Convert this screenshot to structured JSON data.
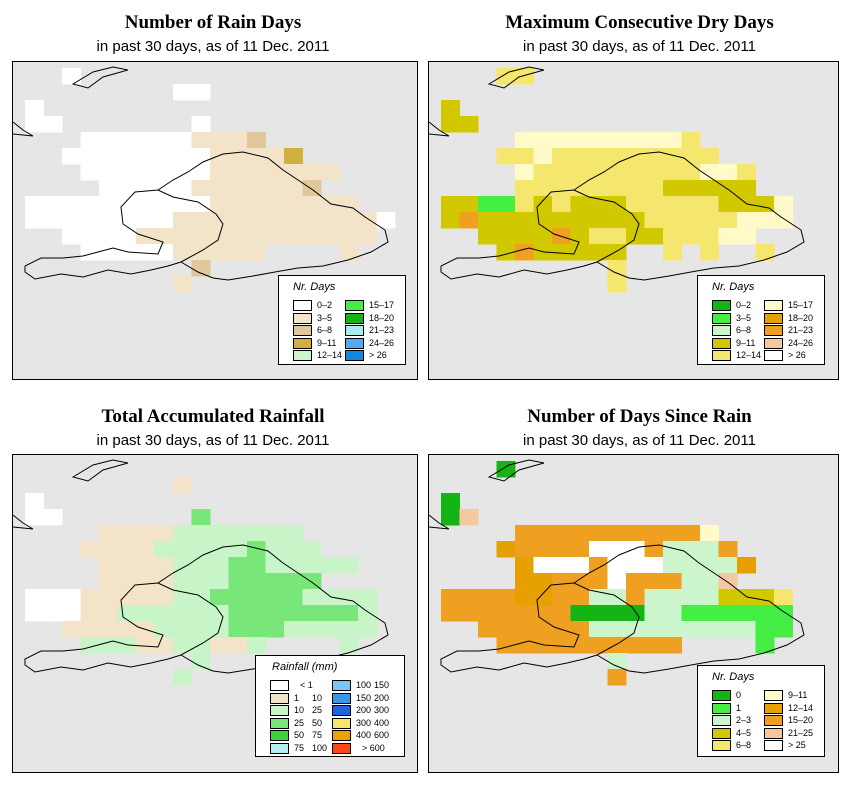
{
  "panels": [
    {
      "id": "rain-days",
      "title": "Number of Rain Days",
      "subtitle": "in past 30 days, as of  11 Dec. 2011",
      "legend": {
        "title": "Nr. Days",
        "items": [
          {
            "label": "0–2",
            "color": "#ffffff"
          },
          {
            "label": "3–5",
            "color": "#f2e3c9"
          },
          {
            "label": "6–8",
            "color": "#e0c89a"
          },
          {
            "label": "9–11",
            "color": "#d2b040"
          },
          {
            "label": "12–14",
            "color": "#ccf5cc"
          },
          {
            "label": "15–17",
            "color": "#44ee44"
          },
          {
            "label": "18–20",
            "color": "#14b414"
          },
          {
            "label": "21–23",
            "color": "#aaeeee"
          },
          {
            "label": "24–26",
            "color": "#55aaee"
          },
          {
            "label": "> 26",
            "color": "#1188dd"
          }
        ]
      }
    },
    {
      "id": "dry-days",
      "title": "Maximum Consecutive Dry Days",
      "subtitle": "in past 30 days, as of  11 Dec. 2011",
      "legend": {
        "title": "Nr. Days",
        "items": [
          {
            "label": "0–2",
            "color": "#14b414"
          },
          {
            "label": "3–5",
            "color": "#44ee44"
          },
          {
            "label": "6–8",
            "color": "#ccf5cc"
          },
          {
            "label": "9–11",
            "color": "#d2c800"
          },
          {
            "label": "12–14",
            "color": "#f5e66e"
          },
          {
            "label": "15–17",
            "color": "#fffac8"
          },
          {
            "label": "18–20",
            "color": "#e6a000"
          },
          {
            "label": "21–23",
            "color": "#f0a020"
          },
          {
            "label": "24–26",
            "color": "#f5c8a0"
          },
          {
            "label": "> 26",
            "color": "#ffffff"
          }
        ]
      }
    },
    {
      "id": "rainfall",
      "title": "Total Accumulated Rainfall",
      "subtitle": "in past 30 days, as of  11 Dec. 2011",
      "legend": {
        "title": "Rainfall (mm)",
        "items": [
          {
            "lo": "",
            "hi": "< 1",
            "color": "#ffffff"
          },
          {
            "lo": "1",
            "hi": "10",
            "color": "#f2e3c9"
          },
          {
            "lo": "10",
            "hi": "25",
            "color": "#c8f5c8"
          },
          {
            "lo": "25",
            "hi": "50",
            "color": "#78e678"
          },
          {
            "lo": "50",
            "hi": "75",
            "color": "#3cd23c"
          },
          {
            "lo": "75",
            "hi": "100",
            "color": "#b4f0f0"
          },
          {
            "lo": "100",
            "hi": "150",
            "color": "#78c8f0"
          },
          {
            "lo": "150",
            "hi": "200",
            "color": "#3c96e6"
          },
          {
            "lo": "200",
            "hi": "300",
            "color": "#1e64dc"
          },
          {
            "lo": "300",
            "hi": "400",
            "color": "#f5e66e"
          },
          {
            "lo": "400",
            "hi": "600",
            "color": "#f0a000"
          },
          {
            "lo": "",
            "hi": "> 600",
            "color": "#ff4614"
          }
        ]
      }
    },
    {
      "id": "since-rain",
      "title": "Number of Days Since Rain",
      "subtitle": "in past 30 days, as of  11 Dec. 2011",
      "legend": {
        "title": "Nr. Days",
        "items": [
          {
            "label": "0",
            "color": "#14b414"
          },
          {
            "label": "1",
            "color": "#44ee44"
          },
          {
            "label": "2–3",
            "color": "#ccf5cc"
          },
          {
            "label": "4–5",
            "color": "#d2c800"
          },
          {
            "label": "6–8",
            "color": "#f5e66e"
          },
          {
            "label": "9–11",
            "color": "#fffac8"
          },
          {
            "label": "12–14",
            "color": "#e6a000"
          },
          {
            "label": "15–20",
            "color": "#f0a020"
          },
          {
            "label": "21–25",
            "color": "#f5c8a0"
          },
          {
            "label": "> 25",
            "color": "#ffffff"
          }
        ]
      }
    }
  ],
  "grids": {
    "rain-days": [
      "..0..................",
      "........00...........",
      "0....................",
      "00.......0...........",
      "...0000001112........",
      "..0000000011113......",
      "...00000001111111....",
      "....000001111112.....",
      "000000000011111111...",
      "00000000111111111110.",
      "..00001111111111111..",
      "...0000011111....1...",
      ".........2...........",
      "........1............"
    ],
    "dry-days": [
      "...44................",
      "..............",
      "3....................",
      "33...................",
      "....5555555554.......",
      "...445444444444......",
      "....5444444444554....",
      "....4444444433333....",
      "3311434333444443335..",
      "3733333333344444555..",
      "..333373443344455....",
      "...3733333..4.4..4...",
      ".........4...........",
      ".........4..........."
    ],
    "rainfall": [
      ".....................",
      "........1............",
      "0....................",
      "00.......3...........",
      "....11112222222......",
      "...1111222223222.....",
      "....11112223322222...",
      "....111122233333.....",
      "0001111122333332222..",
      "0001122222233333332..",
      "..11111222233322222..",
      "...2221122112....2...",
      ".........2...........",
      "........2............"
    ],
    "since-rain": [
      "...0.................",
      "..............",
      "0....................",
      "08...................",
      "....77777777775......",
      "...6777799972227.....",
      "....6999799922226....",
      "....667779777228.....",
      "7777667722722223334..",
      "7777777000022111111..",
      "..77777722222222211..",
      "...7777777777....1...",
      ".........2...........",
      ".........7..........."
    ]
  }
}
